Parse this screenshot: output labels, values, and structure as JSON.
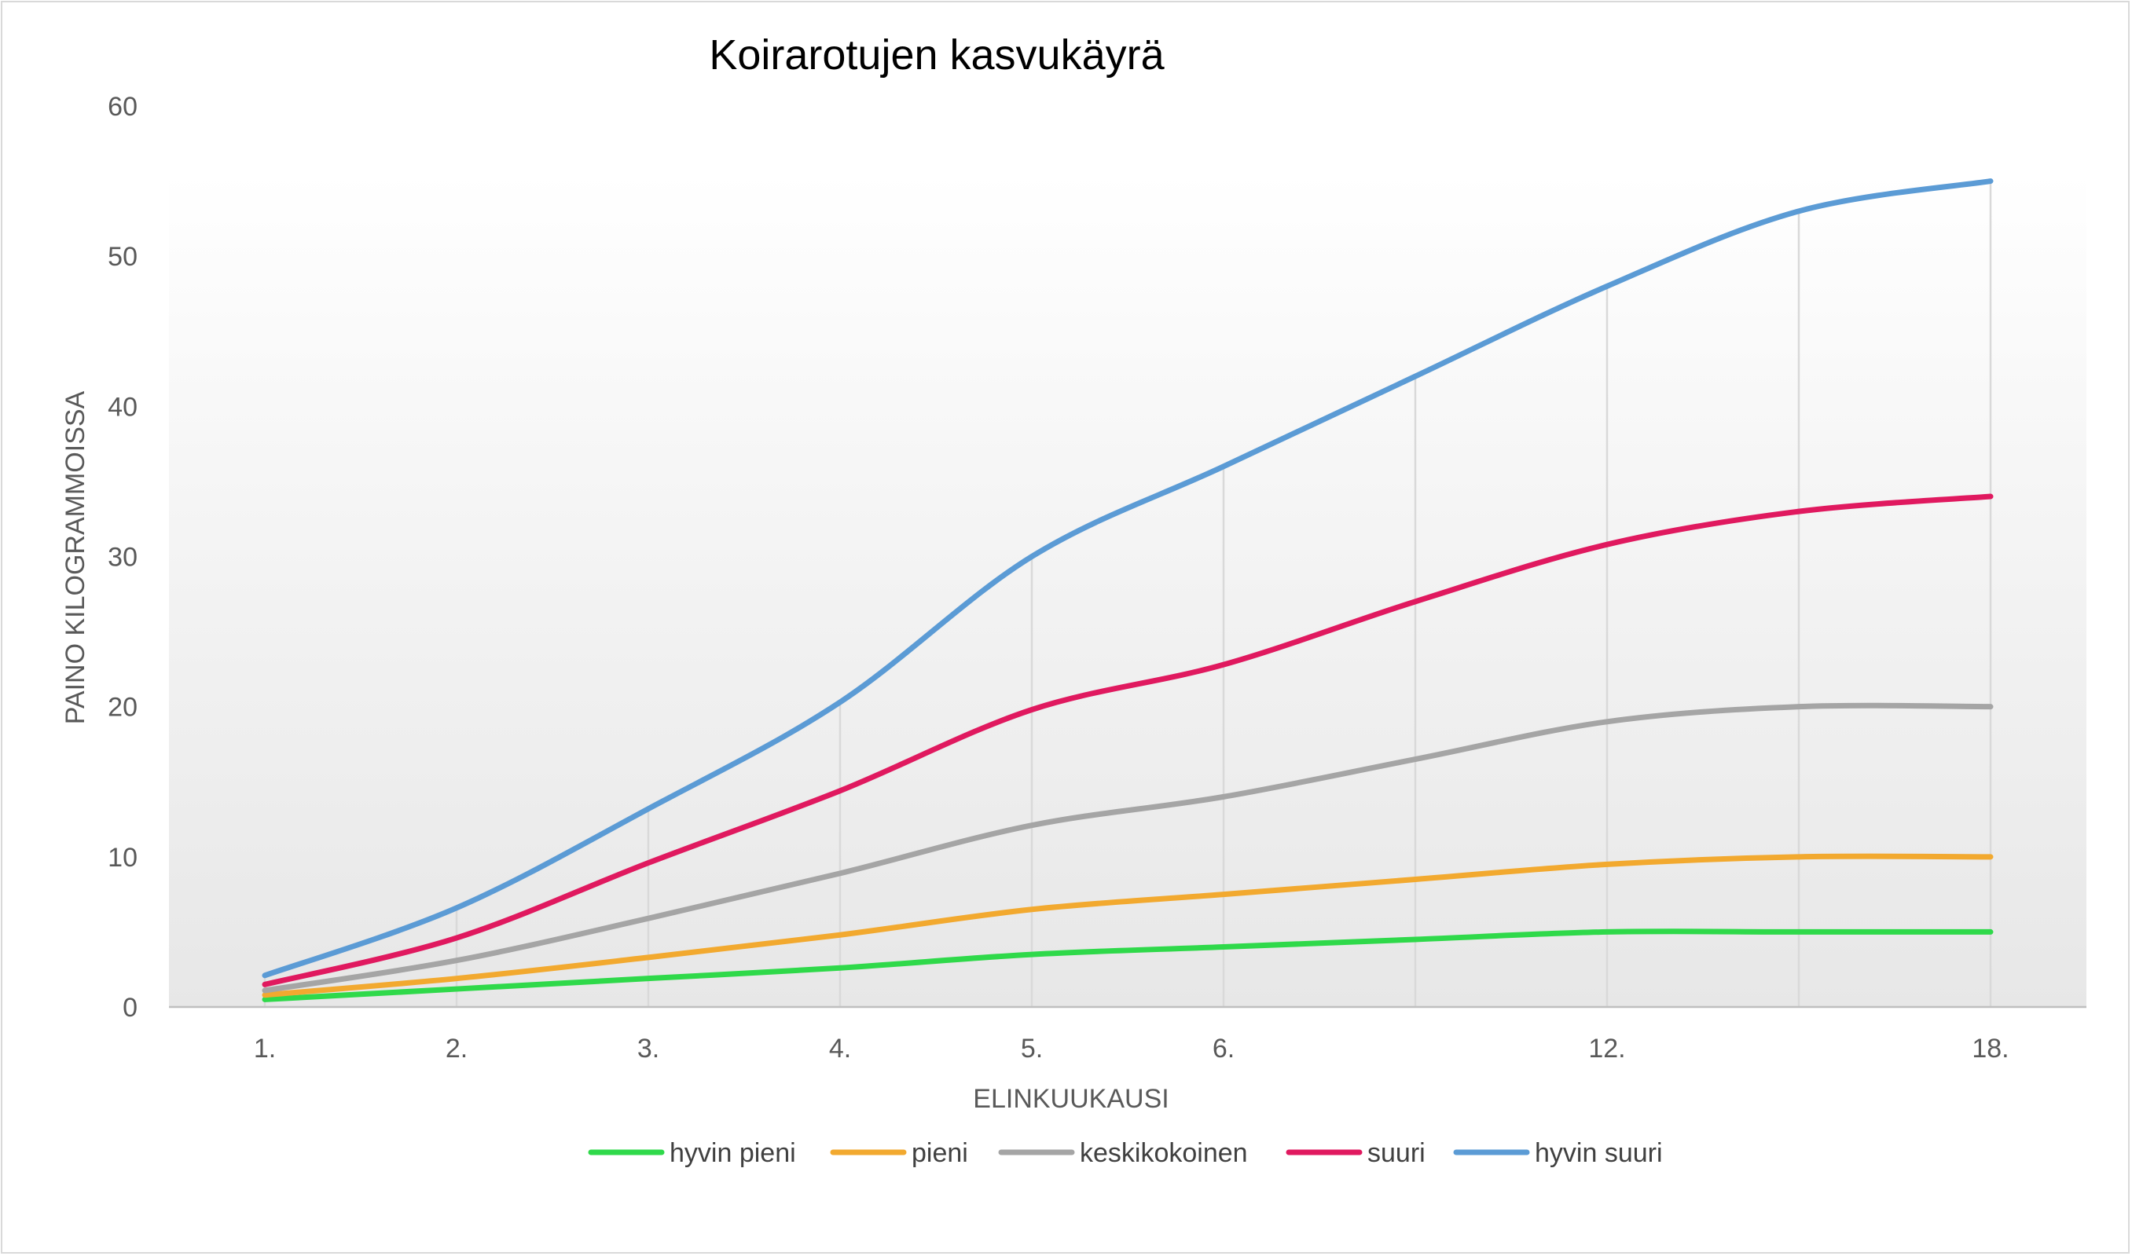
{
  "chart_data": {
    "type": "line",
    "title": "Koirarotujen kasvukäyrä",
    "xlabel": "ELINKUUKAUSI",
    "ylabel": "PAINO KILOGRAMMOISSA",
    "ylim": [
      0,
      60
    ],
    "yticks": [
      0,
      10,
      20,
      30,
      40,
      50,
      60
    ],
    "grid": "vertical",
    "legend": "bottom",
    "categories": [
      "1.",
      "2.",
      "3.",
      "4.",
      "5.",
      "6.",
      "",
      "12.",
      "",
      "18."
    ],
    "series": [
      {
        "name": "hyvin pieni",
        "color": "#2fd94a",
        "values": [
          0.5,
          1.2,
          1.9,
          2.6,
          3.5,
          4.0,
          4.5,
          5.0,
          5.0,
          5.0
        ]
      },
      {
        "name": "pieni",
        "color": "#f2a92f",
        "values": [
          0.8,
          1.9,
          3.3,
          4.8,
          6.5,
          7.5,
          8.5,
          9.5,
          10.0,
          10.0
        ]
      },
      {
        "name": "keskikokoinen",
        "color": "#a5a5a5",
        "values": [
          1.1,
          3.1,
          5.9,
          8.9,
          12.1,
          14.0,
          16.5,
          19.0,
          20.0,
          20.0
        ]
      },
      {
        "name": "suuri",
        "color": "#e0195f",
        "values": [
          1.5,
          4.6,
          9.6,
          14.4,
          19.8,
          22.8,
          27.0,
          30.8,
          33.0,
          34.0
        ]
      },
      {
        "name": "hyvin suuri",
        "color": "#5b9bd5",
        "values": [
          2.1,
          6.6,
          13.2,
          20.3,
          30.0,
          36.0,
          42.0,
          48.0,
          53.0,
          55.0
        ]
      }
    ]
  }
}
